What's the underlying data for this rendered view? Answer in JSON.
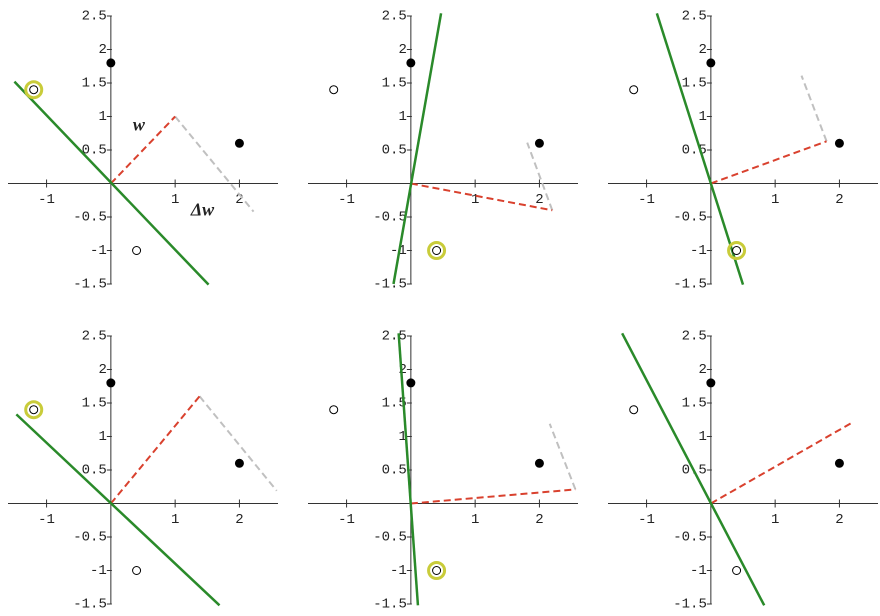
{
  "chart_data": [
    {
      "type": "scatter",
      "xlim": [
        -1.6,
        2.6
      ],
      "ylim": [
        -1.5,
        2.5
      ],
      "xticks": [
        -1,
        1,
        2
      ],
      "yticks": [
        -1.5,
        -1,
        -0.5,
        0.5,
        1,
        1.5,
        2,
        2.5
      ],
      "filled": {
        "x": [
          0,
          2
        ],
        "y": [
          1.8,
          0.6
        ]
      },
      "open": {
        "x": [
          -1.2,
          0.4
        ],
        "y": [
          1.4,
          -1
        ]
      },
      "highlight": {
        "x": [
          -1.2
        ],
        "y": [
          1.4
        ]
      },
      "boundary": {
        "x": [
          -1.5,
          1.52
        ],
        "y": [
          1.52,
          -1.51
        ],
        "color": "#2a8a2a"
      },
      "weight": {
        "x": [
          0,
          1
        ],
        "y": [
          0,
          1
        ],
        "color": "#d9412e"
      },
      "update": {
        "x": [
          1,
          2.22
        ],
        "y": [
          1,
          -0.42
        ],
        "color": "#c0c0c0"
      },
      "weight_label": "w",
      "update_label": "Δw"
    },
    {
      "type": "scatter",
      "xlim": [
        -1.6,
        2.6
      ],
      "ylim": [
        -1.5,
        2.5
      ],
      "xticks": [
        -1,
        1,
        2
      ],
      "yticks": [
        -1.5,
        -1,
        -0.5,
        0.5,
        1,
        1.5,
        2,
        2.5
      ],
      "filled": {
        "x": [
          0,
          2
        ],
        "y": [
          1.8,
          0.6
        ]
      },
      "open": {
        "x": [
          -1.2,
          0.4
        ],
        "y": [
          1.4,
          -1
        ]
      },
      "highlight": {
        "x": [
          0.4
        ],
        "y": [
          -1
        ]
      },
      "boundary": {
        "x": [
          -0.27,
          0.47
        ],
        "y": [
          -1.5,
          2.54
        ],
        "color": "#2a8a2a"
      },
      "weight": {
        "x": [
          0,
          2.2
        ],
        "y": [
          0,
          -0.4
        ],
        "color": "#d9412e"
      },
      "update": {
        "x": [
          2.2,
          1.81
        ],
        "y": [
          -0.4,
          0.61
        ],
        "color": "#c0c0c0"
      }
    },
    {
      "type": "scatter",
      "xlim": [
        -1.6,
        2.6
      ],
      "ylim": [
        -1.5,
        2.5
      ],
      "xticks": [
        -1,
        1,
        2
      ],
      "yticks": [
        -1.5,
        -1,
        -0.5,
        0.5,
        1,
        1.5,
        2,
        2.5
      ],
      "filled": {
        "x": [
          0,
          2
        ],
        "y": [
          1.8,
          0.6
        ]
      },
      "open": {
        "x": [
          -1.2,
          0.4
        ],
        "y": [
          1.4,
          -1
        ]
      },
      "highlight": {
        "x": [
          0.4
        ],
        "y": [
          -1
        ]
      },
      "boundary": {
        "x": [
          -0.84,
          0.5
        ],
        "y": [
          2.54,
          -1.51
        ],
        "color": "#2a8a2a"
      },
      "weight": {
        "x": [
          0,
          1.8
        ],
        "y": [
          0,
          0.63
        ],
        "color": "#d9412e"
      },
      "update": {
        "x": [
          1.8,
          1.41
        ],
        "y": [
          0.63,
          1.61
        ],
        "color": "#c0c0c0"
      }
    },
    {
      "type": "scatter",
      "xlim": [
        -1.6,
        2.6
      ],
      "ylim": [
        -1.5,
        2.5
      ],
      "xticks": [
        -1,
        1,
        2
      ],
      "yticks": [
        -1.5,
        -1,
        -0.5,
        0.5,
        1,
        1.5,
        2,
        2.5
      ],
      "filled": {
        "x": [
          0,
          2
        ],
        "y": [
          1.8,
          0.6
        ]
      },
      "open": {
        "x": [
          -1.2,
          0.4
        ],
        "y": [
          1.4,
          -1
        ]
      },
      "highlight": {
        "x": [
          -1.2
        ],
        "y": [
          1.4
        ]
      },
      "boundary": {
        "x": [
          -1.47,
          1.69
        ],
        "y": [
          1.33,
          -1.52
        ],
        "color": "#2a8a2a"
      },
      "weight": {
        "x": [
          0,
          1.38
        ],
        "y": [
          0,
          1.6
        ],
        "color": "#d9412e"
      },
      "update": {
        "x": [
          1.38,
          2.58
        ],
        "y": [
          1.6,
          0.19
        ],
        "color": "#c0c0c0"
      }
    },
    {
      "type": "scatter",
      "xlim": [
        -1.6,
        2.6
      ],
      "ylim": [
        -1.5,
        2.5
      ],
      "xticks": [
        -1,
        1,
        2
      ],
      "yticks": [
        -1.5,
        -1,
        -0.5,
        0.5,
        1,
        1.5,
        2,
        2.5
      ],
      "filled": {
        "x": [
          0,
          2
        ],
        "y": [
          1.8,
          0.6
        ]
      },
      "open": {
        "x": [
          -1.2,
          0.4
        ],
        "y": [
          1.4,
          -1
        ]
      },
      "highlight": {
        "x": [
          0.4
        ],
        "y": [
          -1
        ]
      },
      "boundary": {
        "x": [
          -0.19,
          0.11
        ],
        "y": [
          2.54,
          -1.52
        ],
        "color": "#2a8a2a"
      },
      "weight": {
        "x": [
          0,
          2.56
        ],
        "y": [
          0,
          0.21
        ],
        "color": "#d9412e"
      },
      "update": {
        "x": [
          2.56,
          2.16
        ],
        "y": [
          0.21,
          1.19
        ],
        "color": "#c0c0c0"
      }
    },
    {
      "type": "scatter",
      "xlim": [
        -1.6,
        2.6
      ],
      "ylim": [
        -1.5,
        2.5
      ],
      "xticks": [
        -1,
        1,
        2
      ],
      "yticks": [
        -1.5,
        -1,
        -0.5,
        0.5,
        1,
        1.5,
        2,
        2.5
      ],
      "filled": {
        "x": [
          0,
          2
        ],
        "y": [
          1.8,
          0.6
        ]
      },
      "open": {
        "x": [
          -1.2,
          0.4
        ],
        "y": [
          1.4,
          -1
        ]
      },
      "boundary": {
        "x": [
          -1.38,
          0.83
        ],
        "y": [
          2.54,
          -1.52
        ],
        "color": "#2a8a2a"
      },
      "weight": {
        "x": [
          0,
          2.22
        ],
        "y": [
          0,
          1.22
        ],
        "color": "#d9412e"
      }
    }
  ]
}
